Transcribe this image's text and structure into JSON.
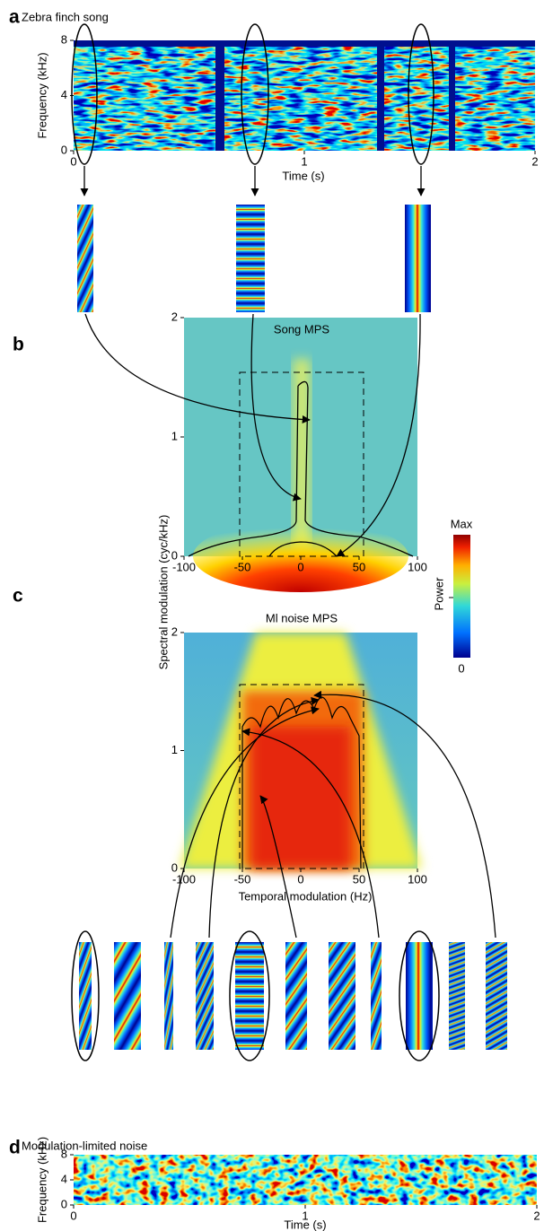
{
  "chart_data": [
    {
      "type": "heatmap",
      "panel": "a",
      "title": "Zebra finch song",
      "x_label": "Time (s)",
      "y_label": "Frequency (kHz)",
      "xlim": [
        0,
        2
      ],
      "ylim": [
        0,
        8
      ],
      "xticks": [
        0,
        1,
        2
      ],
      "yticks": [
        0,
        4,
        8
      ]
    },
    {
      "type": "heatmap",
      "panel": "b",
      "title": "Song MPS",
      "xlim": [
        -100,
        100
      ],
      "ylim": [
        0,
        2
      ],
      "xticks": [
        -100,
        -50,
        0,
        50,
        100
      ],
      "yticks": [
        0,
        1,
        2
      ]
    },
    {
      "type": "heatmap",
      "panel": "c",
      "title": "Ml noise MPS",
      "x_label": "Temporal modulation (Hz)",
      "y_label": "Spectral modulation (cyc/kHz)",
      "xlim": [
        -100,
        100
      ],
      "ylim": [
        0,
        2
      ],
      "xticks": [
        -100,
        -50,
        0,
        50,
        100
      ],
      "yticks": [
        0,
        1,
        2
      ]
    },
    {
      "type": "heatmap",
      "panel": "d",
      "title": "Modulation-limited noise",
      "x_label": "Time (s)",
      "y_label": "Frequency (kHz)",
      "xlim": [
        0,
        2
      ],
      "ylim": [
        0,
        8
      ],
      "xticks": [
        0,
        1,
        2
      ],
      "yticks": [
        0,
        4,
        8
      ]
    }
  ],
  "colorbar": {
    "title": "Power",
    "max_label": "Max",
    "min_label": "0"
  }
}
